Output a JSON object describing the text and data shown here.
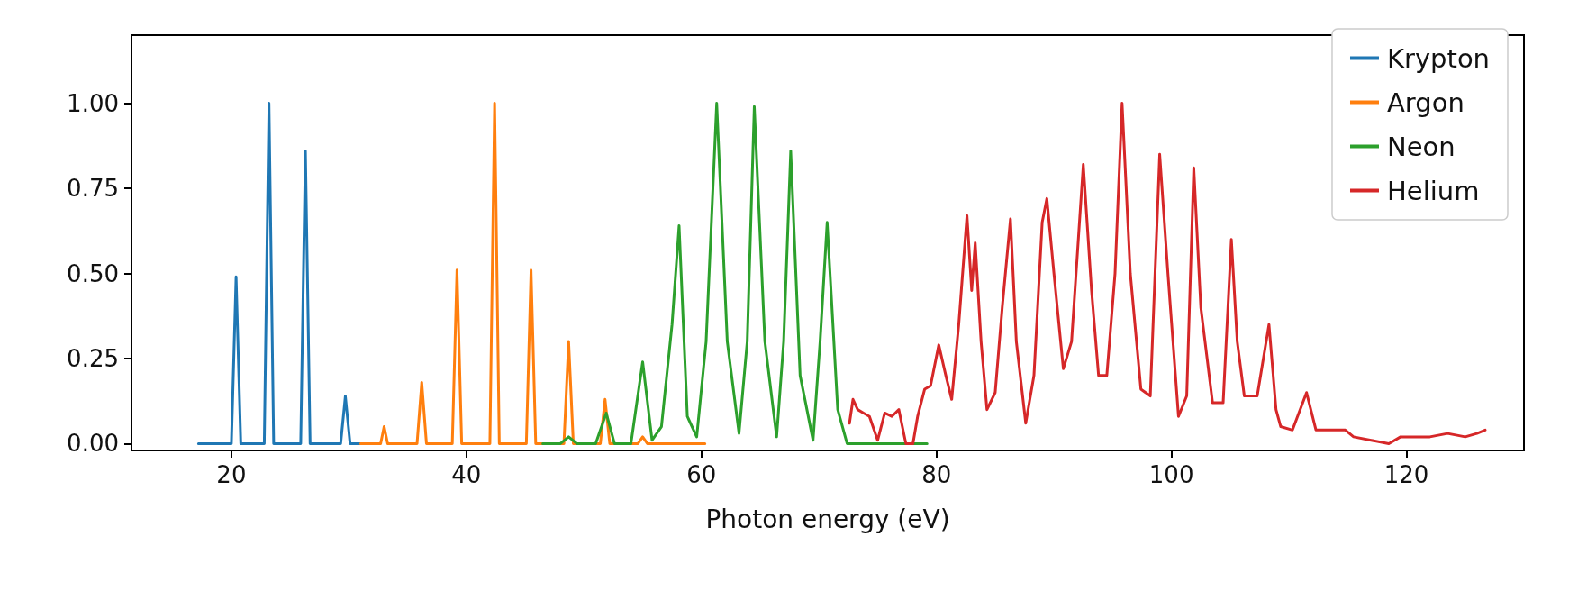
{
  "chart_data": {
    "type": "line",
    "xlabel": "Photon energy (eV)",
    "xlim": [
      11.5,
      130
    ],
    "xticks": [
      20,
      40,
      60,
      80,
      100,
      120
    ],
    "ylim": [
      -0.02,
      1.2
    ],
    "yticks": [
      {
        "value": 0,
        "label": "0.00"
      },
      {
        "value": 0.25,
        "label": "0.25"
      },
      {
        "value": 0.5,
        "label": "0.50"
      },
      {
        "value": 0.75,
        "label": "0.75"
      },
      {
        "value": 1,
        "label": "1.00"
      }
    ],
    "grid": false,
    "legend": "top right",
    "marker": "none",
    "line_style": "solid",
    "series": [
      {
        "name": "Krypton",
        "color": "#1f77b4",
        "x": [
          17.2,
          20.0,
          20.4,
          20.8,
          22.8,
          23.2,
          23.6,
          25.9,
          26.3,
          26.7,
          29.3,
          29.7,
          30.1,
          31
        ],
        "values": [
          0,
          0,
          0.49,
          0,
          0,
          1.0,
          0,
          0,
          0.86,
          0,
          0,
          0.14,
          0,
          0
        ]
      },
      {
        "name": "Argon",
        "color": "#ff7f0e",
        "x": [
          31,
          32.7,
          33.0,
          33.3,
          35.8,
          36.2,
          36.6,
          38.8,
          39.2,
          39.6,
          42.0,
          42.4,
          42.8,
          45.1,
          45.5,
          45.9,
          48.3,
          48.7,
          49.1,
          51.4,
          51.8,
          52.2,
          54.6,
          55.0,
          55.4,
          60.3
        ],
        "values": [
          0,
          0,
          0.05,
          0,
          0,
          0.18,
          0,
          0,
          0.51,
          0,
          0,
          1.0,
          0,
          0,
          0.51,
          0,
          0,
          0.3,
          0,
          0,
          0.13,
          0,
          0,
          0.02,
          0,
          0
        ]
      },
      {
        "name": "Neon",
        "color": "#2ca02c",
        "x": [
          46.5,
          48.0,
          48.7,
          49.4,
          51.0,
          51.9,
          52.6,
          54.0,
          55.0,
          55.8,
          56.6,
          57.5,
          58.1,
          58.8,
          59.6,
          60.4,
          61.3,
          62.2,
          63.2,
          63.9,
          64.5,
          65.4,
          66.4,
          67.0,
          67.6,
          68.4,
          69.5,
          70.1,
          70.7,
          71.6,
          72.4,
          79.2
        ],
        "values": [
          0,
          0,
          0.02,
          0,
          0,
          0.09,
          0,
          0,
          0.24,
          0.01,
          0.05,
          0.35,
          0.64,
          0.08,
          0.02,
          0.3,
          1.0,
          0.3,
          0.03,
          0.3,
          0.99,
          0.3,
          0.02,
          0.3,
          0.86,
          0.2,
          0.01,
          0.3,
          0.65,
          0.1,
          0,
          0
        ]
      },
      {
        "name": "Helium",
        "color": "#d62728",
        "x": [
          72.6,
          72.9,
          73.3,
          73.8,
          74.3,
          75.0,
          75.6,
          76.2,
          76.8,
          77.4,
          78.0,
          78.4,
          79.0,
          79.5,
          80.2,
          80.8,
          81.3,
          81.9,
          82.6,
          83.0,
          83.3,
          83.8,
          84.3,
          85.0,
          85.6,
          86.3,
          86.8,
          87.6,
          88.3,
          89.0,
          89.4,
          90.0,
          90.8,
          91.5,
          92.5,
          93.2,
          93.8,
          94.5,
          95.2,
          95.8,
          96.5,
          97.4,
          98.2,
          99.0,
          99.7,
          100.6,
          101.3,
          101.9,
          102.5,
          103.5,
          104.4,
          105.1,
          105.6,
          106.2,
          107.3,
          108.3,
          108.9,
          109.3,
          110.3,
          111.5,
          112.3,
          113.0,
          114.8,
          115.5,
          117.0,
          118.5,
          119.5,
          120.5,
          122.0,
          123.5,
          125.0,
          126.0,
          126.7
        ],
        "values": [
          0.06,
          0.13,
          0.1,
          0.09,
          0.08,
          0.01,
          0.09,
          0.08,
          0.1,
          0.0,
          0.0,
          0.08,
          0.16,
          0.17,
          0.29,
          0.2,
          0.13,
          0.35,
          0.67,
          0.45,
          0.59,
          0.3,
          0.1,
          0.15,
          0.4,
          0.66,
          0.3,
          0.06,
          0.2,
          0.65,
          0.72,
          0.5,
          0.22,
          0.3,
          0.82,
          0.45,
          0.2,
          0.2,
          0.5,
          1.0,
          0.5,
          0.16,
          0.14,
          0.85,
          0.5,
          0.08,
          0.14,
          0.81,
          0.4,
          0.12,
          0.12,
          0.6,
          0.3,
          0.14,
          0.14,
          0.35,
          0.1,
          0.05,
          0.04,
          0.15,
          0.04,
          0.04,
          0.04,
          0.02,
          0.01,
          0.0,
          0.02,
          0.02,
          0.02,
          0.03,
          0.02,
          0.03,
          0.04
        ]
      }
    ]
  }
}
